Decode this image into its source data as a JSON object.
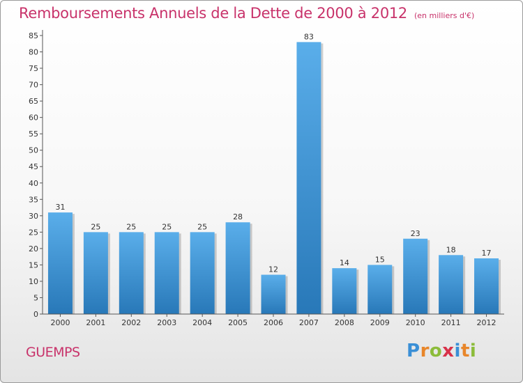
{
  "header": {
    "title": "Remboursements Annuels de la Dette de 2000 à 2012",
    "subtitle": "(en milliers d'€)"
  },
  "commune": "GUEMPS",
  "logo": {
    "letters": [
      {
        "char": "P",
        "color": "#3a8fd6"
      },
      {
        "char": "r",
        "color": "#e8862a"
      },
      {
        "char": "o",
        "color": "#8cbc3a"
      },
      {
        "char": "x",
        "color": "#d8324a"
      },
      {
        "char": "i",
        "color": "#3a8fd6"
      },
      {
        "char": "t",
        "color": "#e8862a"
      },
      {
        "char": "i",
        "color": "#8cbc3a"
      }
    ]
  },
  "chart_data": {
    "type": "bar",
    "title": "Remboursements Annuels de la Dette de 2000 à 2012",
    "subtitle": "(en milliers d'€)",
    "categories": [
      "2000",
      "2001",
      "2002",
      "2003",
      "2004",
      "2005",
      "2006",
      "2007",
      "2008",
      "2009",
      "2010",
      "2011",
      "2012"
    ],
    "values": [
      31,
      25,
      25,
      25,
      25,
      28,
      12,
      83,
      14,
      15,
      23,
      18,
      17
    ],
    "ylim": [
      0,
      85
    ],
    "yticks": [
      0,
      5,
      10,
      15,
      20,
      25,
      30,
      35,
      40,
      45,
      50,
      55,
      60,
      65,
      70,
      75,
      80,
      85
    ],
    "grid": false,
    "bar_color_top": "#5aaeea",
    "bar_color_bottom": "#2878b8"
  }
}
